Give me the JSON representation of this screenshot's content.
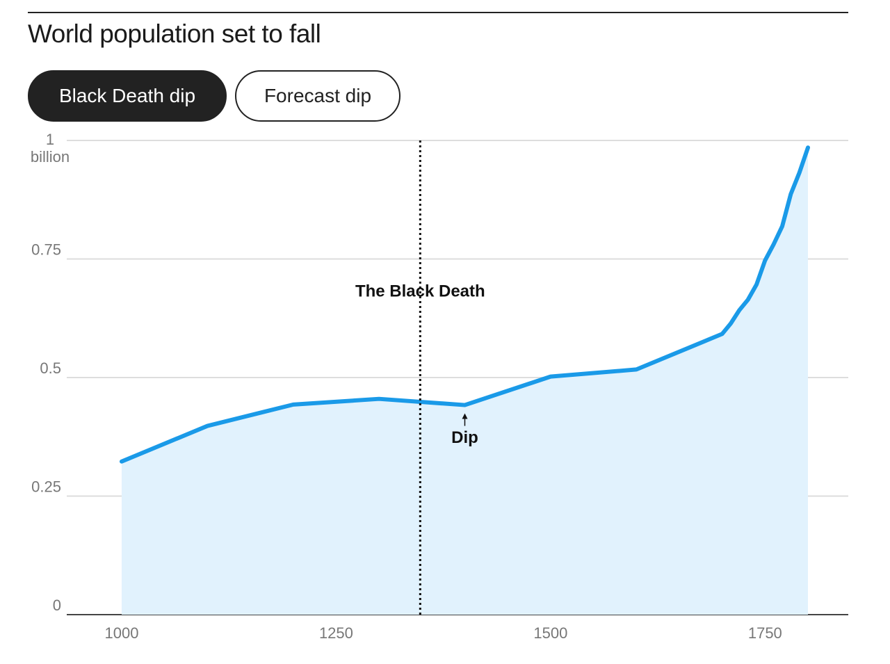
{
  "tabs": [
    "Black Death dip",
    "Forecast dip"
  ],
  "active_tab": 0,
  "chart_data": {
    "type": "area",
    "title": "World population set to fall",
    "x": [
      1000,
      1100,
      1200,
      1300,
      1400,
      1500,
      1600,
      1700,
      1710,
      1720,
      1730,
      1740,
      1750,
      1760,
      1770,
      1780,
      1790,
      1800
    ],
    "series": [
      {
        "name": "World population",
        "color": "#1a9ae8",
        "fill": "#e1f2fd",
        "values": [
          0.323,
          0.398,
          0.443,
          0.455,
          0.442,
          0.502,
          0.517,
          0.592,
          0.614,
          0.642,
          0.664,
          0.696,
          0.747,
          0.781,
          0.819,
          0.887,
          0.932,
          0.985
        ]
      }
    ],
    "xlim": [
      936,
      1847
    ],
    "ylim": [
      0,
      1
    ],
    "xticks": [
      1000,
      1250,
      1500,
      1750
    ],
    "yticks": [
      0,
      0.25,
      0.5,
      0.75,
      {
        "value": 1,
        "label": "1 billion"
      }
    ],
    "grid": true,
    "annotations": [
      {
        "x": 1348,
        "label": "The Black Death"
      },
      {
        "x": 1400,
        "label": "Dip"
      }
    ]
  }
}
